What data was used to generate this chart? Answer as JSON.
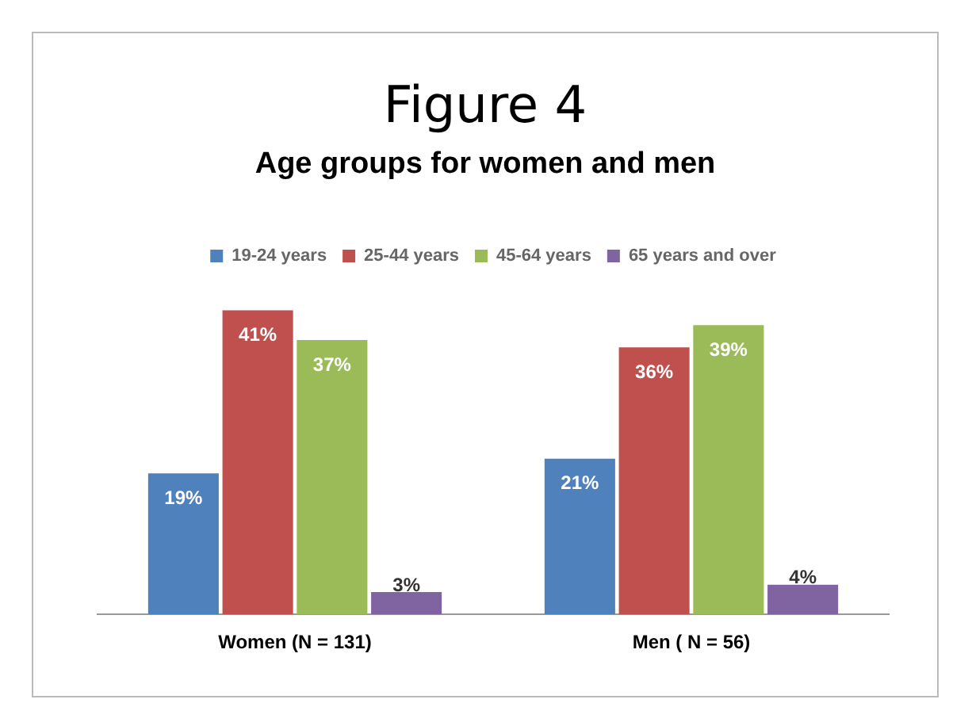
{
  "chart_data": {
    "type": "bar",
    "title": "Figure 4",
    "subtitle": "Age groups for women and men",
    "categories": [
      "Women (N = 131)",
      "Men ( N = 56)"
    ],
    "series": [
      {
        "name": "19-24 years",
        "color": "#4f81bd",
        "values": [
          19,
          21
        ],
        "value_labels": [
          "19%",
          "21%"
        ]
      },
      {
        "name": "25-44 years",
        "color": "#c0504d",
        "values": [
          41,
          36
        ],
        "value_labels": [
          "41%",
          "36%"
        ]
      },
      {
        "name": "45-64 years",
        "color": "#9bbb59",
        "values": [
          37,
          39
        ],
        "value_labels": [
          "37%",
          "39%"
        ]
      },
      {
        "name": "65 years and over",
        "color": "#8064a2",
        "values": [
          3,
          4
        ],
        "value_labels": [
          "3%",
          "4%"
        ]
      }
    ],
    "legend": "top",
    "grid": false,
    "tick_labels": "x"
  }
}
